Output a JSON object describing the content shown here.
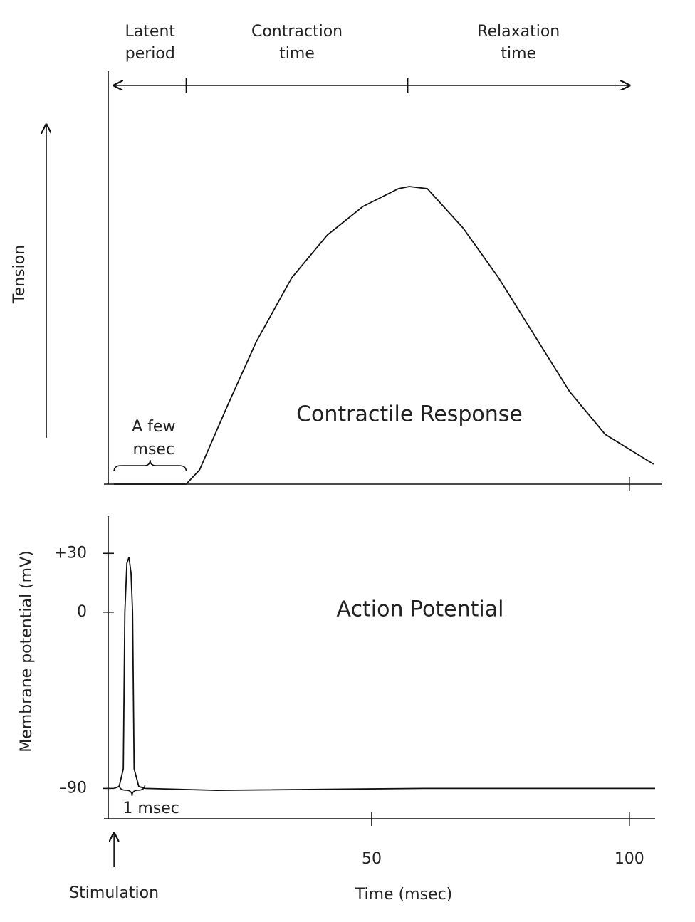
{
  "chart_data": [
    {
      "type": "line",
      "title": "Contractile Response",
      "y_label": "Tension",
      "x": [
        0,
        14,
        16.6,
        22,
        27.6,
        34.5,
        41.4,
        48.3,
        55.2,
        57.3,
        60.8,
        67.7,
        74.6,
        81.5,
        88.4,
        95.3,
        104.7
      ],
      "values": [
        0,
        0,
        4,
        22,
        40,
        58,
        70,
        78,
        83,
        83.6,
        83,
        72,
        58,
        42,
        26,
        14,
        5.6
      ],
      "color": "#111111",
      "xlim": [
        -1.4,
        105
      ],
      "ylim": [
        0,
        100
      ],
      "tick_marks": [
        100
      ],
      "phases": [
        {
          "label": [
            "Latent",
            "period"
          ],
          "start": 0,
          "end": 14
        },
        {
          "label": [
            "Contraction",
            "time"
          ],
          "start": 14,
          "end": 57
        },
        {
          "label": [
            "Relaxation",
            "time"
          ],
          "start": 57,
          "end": 100
        }
      ],
      "annotation": {
        "label": [
          "A few",
          "msec"
        ],
        "start": 0,
        "end": 14
      }
    },
    {
      "type": "line",
      "title": "Action Potential",
      "y_label": "Membrane potential (mV)",
      "x_label": "Time (msec)",
      "x": [
        0,
        1,
        1.8,
        2.1,
        2.5,
        2.9,
        3.3,
        3.6,
        3.9,
        4.8,
        6,
        20,
        60,
        90,
        105
      ],
      "values": [
        -90,
        -89,
        -80,
        0,
        25,
        28,
        20,
        0,
        -80,
        -89,
        -90,
        -91,
        -90,
        -90,
        -90
      ],
      "color": "#111111",
      "xlim": [
        -1.4,
        105
      ],
      "ylim": [
        -105.5,
        49
      ],
      "xticks": [
        50,
        100
      ],
      "yticks": [
        {
          "value": 30,
          "label": "+30"
        },
        0,
        {
          "value": -90,
          "label": "–90"
        }
      ],
      "annotation": {
        "label": "1 msec",
        "start": 1,
        "end": 6
      },
      "stimulation": {
        "label": "Stimulation",
        "x": 0
      }
    }
  ]
}
